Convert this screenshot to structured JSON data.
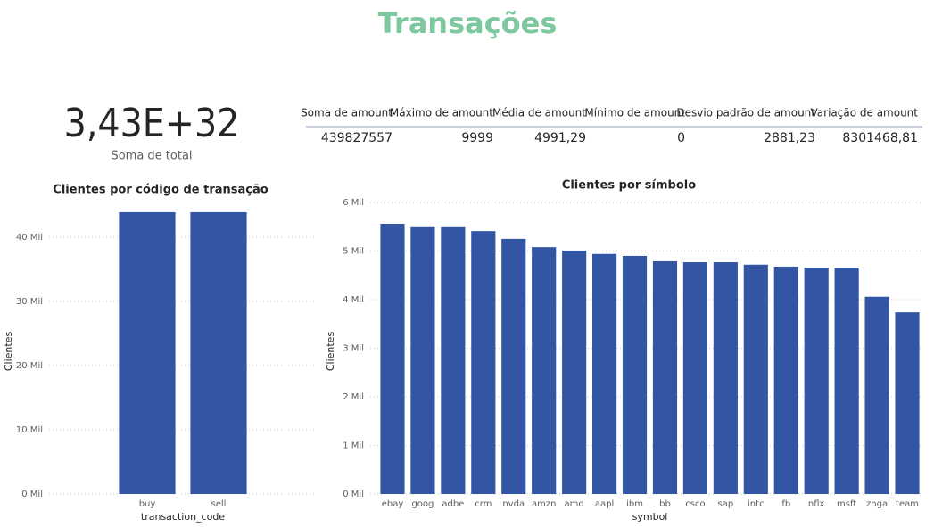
{
  "header": {
    "title": "Transações"
  },
  "card": {
    "value": "3,43E+32",
    "label": "Soma de total"
  },
  "table": {
    "columns": [
      "Soma de amount",
      "Máximo de amount",
      "Média de amount",
      "Mínimo de amount",
      "Desvio padrão de amount",
      "Variação de amount"
    ],
    "rows": [
      [
        "439827557",
        "9999",
        "4991,29",
        "0",
        "2881,23",
        "8301468,81"
      ]
    ]
  },
  "chart_data": [
    {
      "type": "bar",
      "title": "Clientes por código de transação",
      "x_label": "transaction_code",
      "y_label": "Clientes",
      "categories": [
        "buy",
        "sell"
      ],
      "values": [
        43.9,
        43.9
      ],
      "color": "#3255a4",
      "ylim": [
        0,
        45
      ],
      "yticks": [
        {
          "value": 0,
          "label": "0 Mil"
        },
        {
          "value": 10,
          "label": "10 Mil"
        },
        {
          "value": 20,
          "label": "20 Mil"
        },
        {
          "value": 30,
          "label": "30 Mil"
        },
        {
          "value": 40,
          "label": "40 Mil"
        }
      ],
      "grid": true
    },
    {
      "type": "bar",
      "title": "Clientes por símbolo",
      "x_label": "symbol",
      "y_label": "Clientes",
      "categories": [
        "ebay",
        "goog",
        "adbe",
        "crm",
        "nvda",
        "amzn",
        "amd",
        "aapl",
        "ibm",
        "bb",
        "csco",
        "sap",
        "intc",
        "fb",
        "nflx",
        "msft",
        "znga",
        "team"
      ],
      "values": [
        5.56,
        5.49,
        5.49,
        5.41,
        5.25,
        5.08,
        5.01,
        4.94,
        4.9,
        4.79,
        4.77,
        4.77,
        4.72,
        4.68,
        4.66,
        4.66,
        4.06,
        3.74
      ],
      "color": "#3255a4",
      "ylim": [
        0,
        6
      ],
      "yticks": [
        {
          "value": 0,
          "label": "0 Mil"
        },
        {
          "value": 1,
          "label": "1 Mil"
        },
        {
          "value": 2,
          "label": "2 Mil"
        },
        {
          "value": 3,
          "label": "3 Mil"
        },
        {
          "value": 4,
          "label": "4 Mil"
        },
        {
          "value": 5,
          "label": "5 Mil"
        },
        {
          "value": 6,
          "label": "6 Mil"
        }
      ],
      "grid": true
    }
  ]
}
